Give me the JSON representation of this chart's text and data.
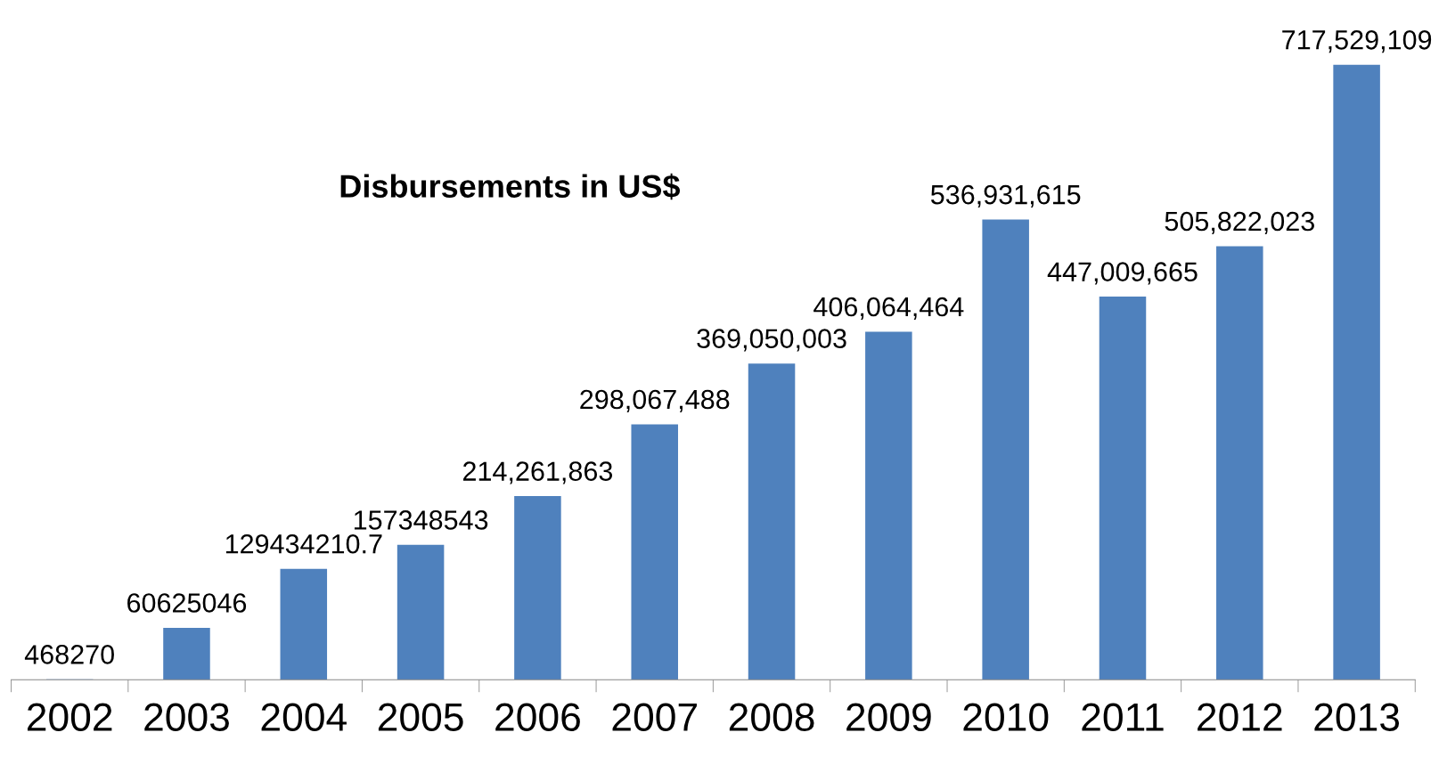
{
  "chart_data": {
    "type": "bar",
    "title": "Disbursements in US$",
    "categories": [
      "2002",
      "2003",
      "2004",
      "2005",
      "2006",
      "2007",
      "2008",
      "2009",
      "2010",
      "2011",
      "2012",
      "2013"
    ],
    "values": [
      468270,
      60625046,
      129434210.7,
      157348543,
      214261863,
      298067488,
      369050003,
      406064464,
      536931615,
      447009665,
      505822023,
      717529109
    ],
    "value_labels": [
      "468270",
      "60625046",
      "129434210.7",
      "157348543",
      "214,261,863",
      "298,067,488",
      "369,050,003",
      "406,064,464",
      "536,931,615",
      "447,009,665",
      "505,822,023",
      "717,529,109"
    ],
    "color": "#4f81bd",
    "grid": false,
    "legend": false,
    "tick_labels": "x"
  }
}
